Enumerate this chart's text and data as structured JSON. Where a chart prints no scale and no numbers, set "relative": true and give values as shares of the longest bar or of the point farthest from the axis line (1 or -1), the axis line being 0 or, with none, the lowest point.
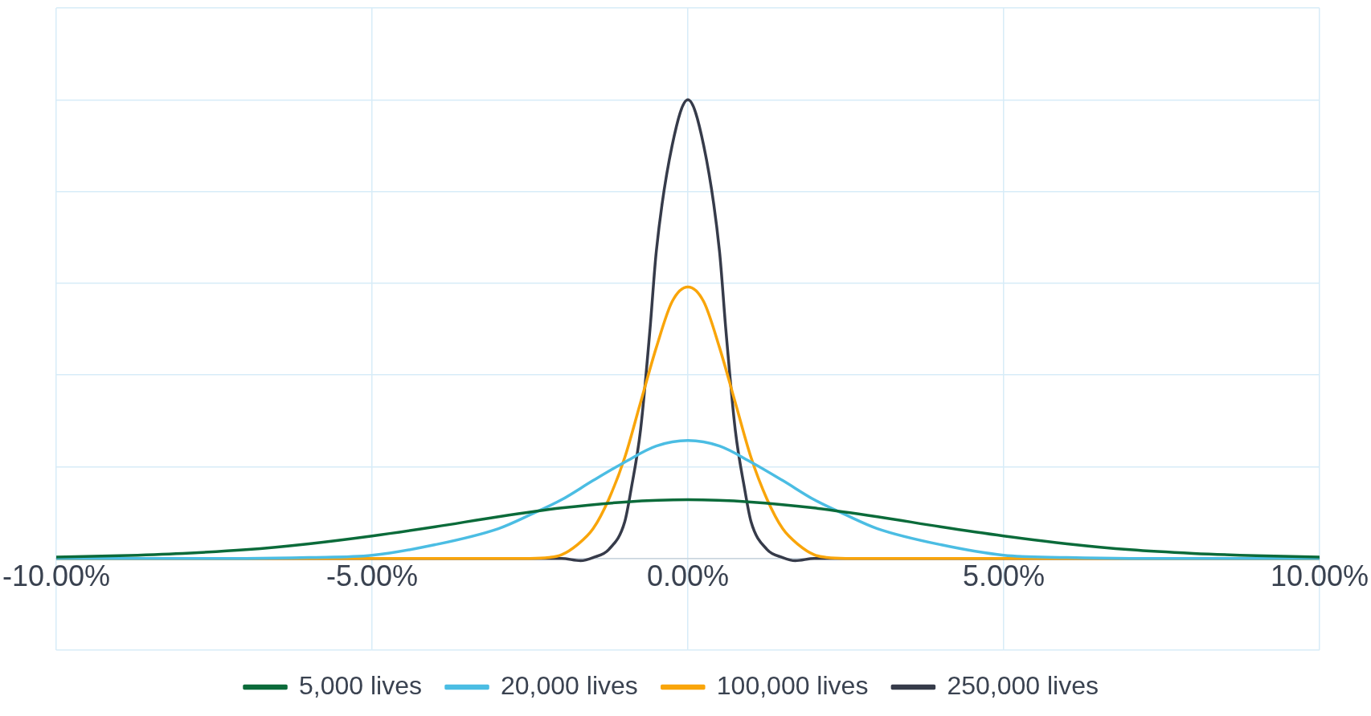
{
  "chart_data": {
    "type": "line",
    "relative": true,
    "grid": true,
    "legend": "bottom",
    "marker": "none",
    "line_style": "solid",
    "xlim": [
      -10,
      10
    ],
    "xticks": [
      {
        "value": -10,
        "label": "-10.00%"
      },
      {
        "value": -5,
        "label": "-5.00%"
      },
      {
        "value": 0,
        "label": "0.00%"
      },
      {
        "value": 5,
        "label": "5.00%"
      },
      {
        "value": 10,
        "label": "10.00%"
      }
    ],
    "series": [
      {
        "name": "5,000 lives",
        "color": "#0b6b3a",
        "x": [
          -10,
          -9,
          -8,
          -7,
          -6,
          -5,
          -4,
          -3,
          -2,
          -1,
          0,
          1,
          2,
          3,
          4,
          5,
          6,
          7,
          8,
          9,
          10
        ],
        "values": [
          0.003,
          0.006,
          0.011,
          0.019,
          0.032,
          0.049,
          0.069,
          0.091,
          0.11,
          0.123,
          0.128,
          0.123,
          0.11,
          0.091,
          0.069,
          0.049,
          0.032,
          0.019,
          0.011,
          0.006,
          0.003
        ]
      },
      {
        "name": "20,000 lives",
        "color": "#4bbde3",
        "x": [
          -10,
          -7,
          -6,
          -5,
          -4,
          -3,
          -2.5,
          -2,
          -1.5,
          -1,
          -0.5,
          0,
          0.5,
          1,
          1.5,
          2,
          2.5,
          3,
          4,
          5,
          6,
          7,
          10
        ],
        "values": [
          0,
          0,
          0.002,
          0.007,
          0.03,
          0.065,
          0.095,
          0.128,
          0.17,
          0.21,
          0.245,
          0.257,
          0.245,
          0.21,
          0.17,
          0.128,
          0.095,
          0.065,
          0.03,
          0.007,
          0.002,
          0,
          0
        ]
      },
      {
        "name": "100,000 lives",
        "color": "#f9a50a",
        "x": [
          -10,
          -2.5,
          -2.2,
          -2,
          -1.75,
          -1.5,
          -1.25,
          -1,
          -0.75,
          -0.5,
          -0.25,
          0,
          0.25,
          0.5,
          0.75,
          1,
          1.25,
          1.5,
          1.75,
          2,
          2.2,
          2.5,
          10
        ],
        "values": [
          0,
          0,
          0.002,
          0.008,
          0.03,
          0.065,
          0.13,
          0.22,
          0.34,
          0.46,
          0.56,
          0.592,
          0.56,
          0.46,
          0.34,
          0.22,
          0.13,
          0.065,
          0.03,
          0.008,
          0.002,
          0,
          0
        ]
      },
      {
        "name": "250,000 lives",
        "color": "#363b4a",
        "x": [
          -10,
          -2,
          -1.7,
          -1.5,
          -1.25,
          -1,
          -0.9,
          -0.75,
          -0.6,
          -0.5,
          -0.25,
          0,
          0.25,
          0.5,
          0.6,
          0.75,
          0.9,
          1,
          1.25,
          1.5,
          1.7,
          2,
          10
        ],
        "values": [
          0,
          0,
          -0.005,
          0.002,
          0.02,
          0.08,
          0.15,
          0.28,
          0.5,
          0.67,
          0.9,
          1,
          0.9,
          0.67,
          0.5,
          0.28,
          0.15,
          0.08,
          0.02,
          0.002,
          -0.005,
          0,
          0
        ]
      }
    ]
  }
}
